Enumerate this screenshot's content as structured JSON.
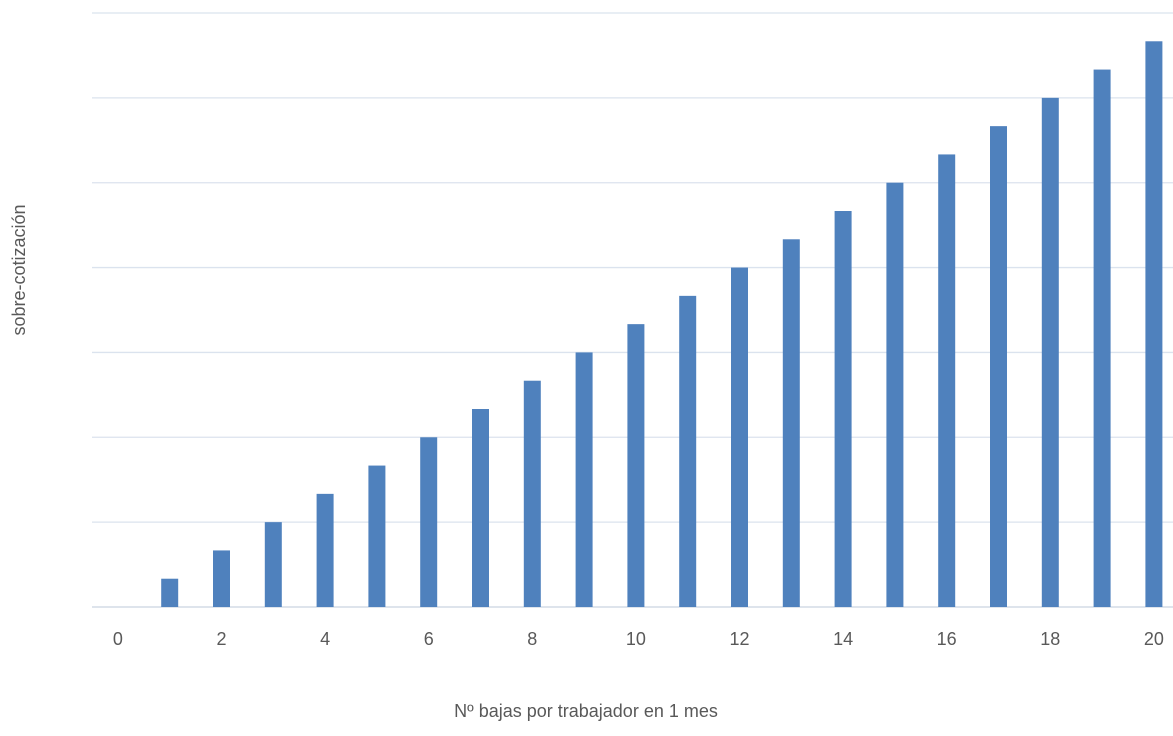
{
  "chart_data": {
    "type": "bar",
    "x_label": "Nº bajas por trabajador en 1 mes",
    "y_label": "sobre-cotización",
    "categories": [
      "0",
      null,
      "2",
      null,
      "4",
      null,
      "6",
      null,
      "8",
      null,
      "10",
      null,
      "12",
      null,
      "14",
      null,
      "16",
      null,
      "18",
      null,
      "20"
    ],
    "values": [
      0,
      1,
      2,
      3,
      4,
      5,
      6,
      7,
      8,
      9,
      10,
      11,
      12,
      13,
      14,
      15,
      16,
      17,
      18,
      19,
      20
    ],
    "color": "#4f81bd",
    "ylim": [
      0,
      21
    ],
    "yticks": [
      0,
      3,
      6,
      9,
      12,
      15,
      18,
      21
    ],
    "grid": true
  }
}
